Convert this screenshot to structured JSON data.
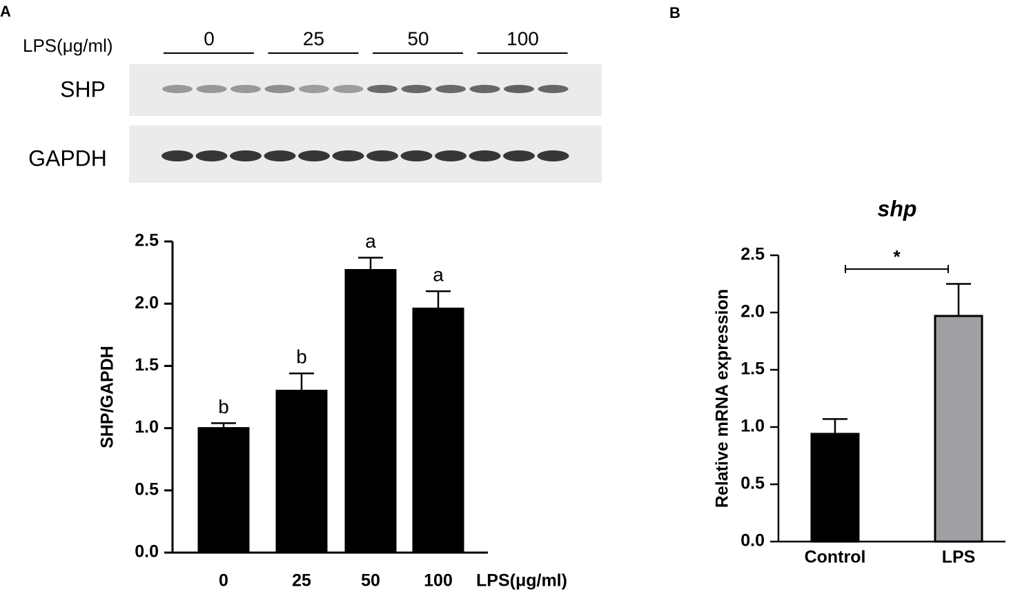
{
  "panel_labels": [
    "A",
    "B"
  ],
  "blot": {
    "treatment_label": "LPS(μg/ml)",
    "doses": [
      "0",
      "25",
      "50",
      "100"
    ],
    "rows": [
      "SHP",
      "GAPDH"
    ]
  },
  "chart_data": [
    {
      "type": "bar",
      "categories": [
        "0",
        "25",
        "50",
        "100"
      ],
      "values": [
        1.0,
        1.3,
        2.27,
        1.96
      ],
      "errors": [
        0.04,
        0.14,
        0.1,
        0.14
      ],
      "annotations": [
        "b",
        "b",
        "a",
        "a"
      ],
      "color": "#000000",
      "x_label": "LPS(μg/ml)",
      "y_label": "SHP/GAPDH",
      "ylim": [
        0,
        2.5
      ],
      "yticks": [
        {
          "value": 0,
          "label": "0.0"
        },
        0.5,
        {
          "value": 1,
          "label": "1.0"
        },
        1.5,
        {
          "value": 2,
          "label": "2.0"
        },
        2.5
      ]
    },
    {
      "type": "bar",
      "title": "shp",
      "categories": [
        "Control",
        "LPS"
      ],
      "values": [
        0.94,
        1.97
      ],
      "errors": [
        0.13,
        0.28
      ],
      "colors": [
        "#000000",
        "#a0a0a4"
      ],
      "significance": "*",
      "y_label": "Relative mRNA expression",
      "ylim": [
        0,
        2.5
      ],
      "yticks": [
        {
          "value": 0,
          "label": "0.0"
        },
        0.5,
        {
          "value": 1,
          "label": "1.0"
        },
        1.5,
        {
          "value": 2,
          "label": "2.0"
        },
        2.5
      ]
    }
  ]
}
